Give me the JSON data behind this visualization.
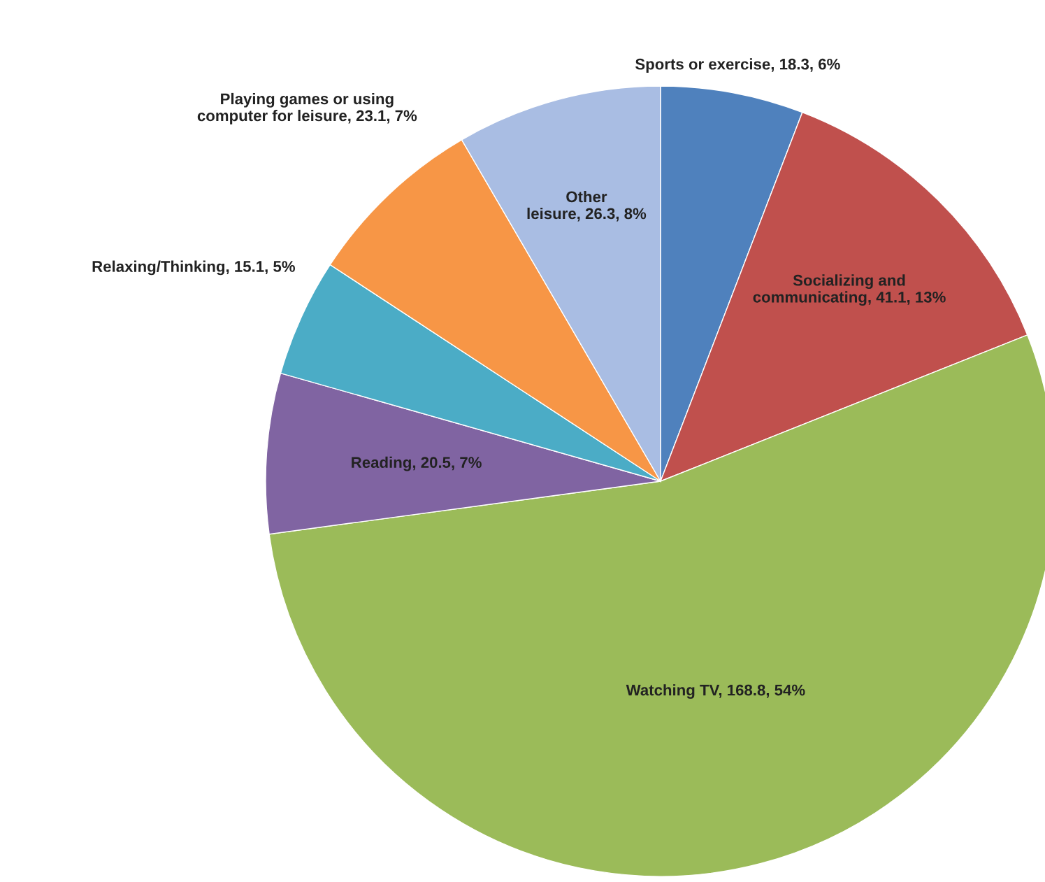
{
  "chart_data": {
    "type": "pie",
    "categories": [
      "Sports or exercise",
      "Socializing and\ncommunicating",
      "Watching TV",
      "Reading",
      "Relaxing/Thinking",
      "Playing games or using\ncomputer for leisure",
      "Other\nleisure"
    ],
    "values": [
      18.3,
      41.1,
      168.8,
      20.5,
      15.1,
      23.1,
      26.3
    ],
    "value_labels": [
      "18.3, 6%",
      "41.1, 13%",
      "168.8, 54%",
      "20.5, 7%",
      "15.1, 5%",
      "23.1, 7%",
      "26.3, 8%"
    ],
    "colors": [
      "#4f81bd",
      "#c0504d",
      "#9bbb59",
      "#8064a2",
      "#4bacc6",
      "#f79646",
      "#a9bde3"
    ]
  }
}
